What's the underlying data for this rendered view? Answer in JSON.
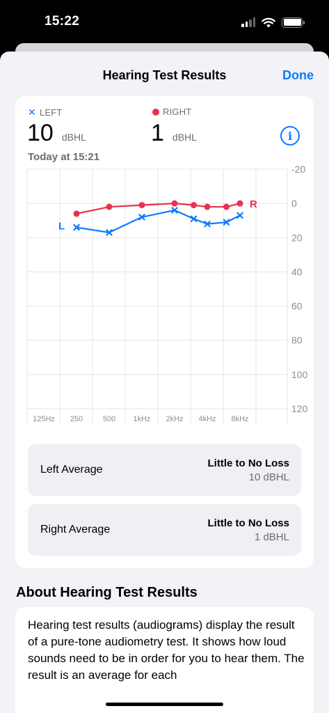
{
  "status_bar": {
    "time": "15:22"
  },
  "nav": {
    "title": "Hearing Test Results",
    "done_label": "Done"
  },
  "summary": {
    "left": {
      "legend": "LEFT",
      "value": "10",
      "unit": "dBHL"
    },
    "right": {
      "legend": "RIGHT",
      "value": "1",
      "unit": "dBHL"
    },
    "date": "Today at 15:21",
    "info_icon": "info-circle-icon"
  },
  "chart_data": {
    "type": "line",
    "x": [
      "125Hz",
      "250",
      "500",
      "1kHz",
      "2kHz",
      "4kHz",
      "8kHz"
    ],
    "x_extra_points": [
      "3kHz",
      "6kHz"
    ],
    "ylabel": "",
    "ylim": [
      -20,
      120
    ],
    "y_ticks": [
      "-20",
      "0",
      "20",
      "40",
      "60",
      "80",
      "100",
      "120"
    ],
    "y_inverted": true,
    "grid": true,
    "series": [
      {
        "name": "R",
        "marker": "circle",
        "color": "#e8324f",
        "points": [
          [
            "250",
            6
          ],
          [
            "500",
            2
          ],
          [
            "1kHz",
            1
          ],
          [
            "2kHz",
            0
          ],
          [
            "3kHz",
            1
          ],
          [
            "4kHz",
            2
          ],
          [
            "6kHz",
            2
          ],
          [
            "8kHz",
            0
          ]
        ]
      },
      {
        "name": "L",
        "marker": "x",
        "color": "#0a7aff",
        "points": [
          [
            "250",
            14
          ],
          [
            "500",
            17
          ],
          [
            "1kHz",
            8
          ],
          [
            "2kHz",
            4
          ],
          [
            "3kHz",
            9
          ],
          [
            "4kHz",
            12
          ],
          [
            "6kHz",
            11
          ],
          [
            "8kHz",
            7
          ]
        ]
      }
    ]
  },
  "averages": [
    {
      "label": "Left Average",
      "status": "Little to No Loss",
      "value": "10 dBHL"
    },
    {
      "label": "Right Average",
      "status": "Little to No Loss",
      "value": "1 dBHL"
    }
  ],
  "about": {
    "heading": "About Hearing Test Results",
    "text": "Hearing test results (audiograms) display the result of a pure-tone audiometry test. It shows how loud sounds need to be in order for you to hear them. The result is an average for each"
  }
}
